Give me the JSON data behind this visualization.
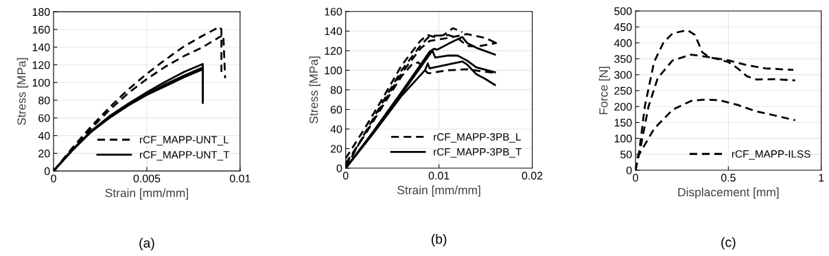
{
  "chart_data": [
    {
      "type": "line",
      "xlabel": "Strain [mm/mm]",
      "ylabel": "Stress [MPa]",
      "xlim": [
        0,
        0.01
      ],
      "xticks": [
        0,
        0.005,
        0.01
      ],
      "ylim": [
        0,
        180
      ],
      "yticks": [
        0,
        20,
        40,
        60,
        80,
        100,
        120,
        140,
        160,
        180
      ],
      "grid": true,
      "legend": "bottom right",
      "marker": "none",
      "annotations": [
        "(a)"
      ],
      "series": [
        {
          "name": "rCF_MAPP-UNT_L",
          "color": "#000000",
          "line_style": "dashed",
          "x": [
            0,
            0.001,
            0.002,
            0.003,
            0.004,
            0.005,
            0.006,
            0.007,
            0.008,
            0.0089,
            0.009,
            0.009
          ],
          "values": [
            0,
            26,
            50,
            72,
            92,
            110,
            126,
            141,
            153,
            163,
            160,
            112
          ]
        },
        {
          "color": "#000000",
          "line_style": "dashed",
          "x": [
            0,
            0.001,
            0.002,
            0.003,
            0.004,
            0.005,
            0.006,
            0.007,
            0.008,
            0.0091,
            0.0092
          ],
          "values": [
            0,
            25,
            48,
            69,
            88,
            104,
            118,
            130,
            140,
            154,
            105
          ]
        },
        {
          "name": "rCF_MAPP-UNT_T",
          "color": "#000000",
          "line_style": "solid",
          "x": [
            0,
            0.001,
            0.002,
            0.003,
            0.004,
            0.005,
            0.006,
            0.007,
            0.008,
            0.008
          ],
          "values": [
            0,
            24,
            45,
            62,
            76,
            89,
            101,
            112,
            121,
            77
          ]
        },
        {
          "color": "#000000",
          "line_style": "solid",
          "x": [
            0,
            0.001,
            0.002,
            0.003,
            0.004,
            0.005,
            0.006,
            0.007,
            0.008,
            0.008
          ],
          "values": [
            0,
            24,
            44,
            61,
            75,
            87,
            98,
            108,
            117,
            80
          ]
        },
        {
          "color": "#000000",
          "line_style": "solid",
          "x": [
            0,
            0.001,
            0.002,
            0.003,
            0.004,
            0.005,
            0.006,
            0.007,
            0.008,
            0.008
          ],
          "values": [
            0,
            23,
            44,
            60,
            74,
            86,
            96,
            106,
            115,
            82
          ]
        }
      ]
    },
    {
      "type": "line",
      "xlabel": "Strain [mm/mm]",
      "ylabel": "Stress [MPa]",
      "xlim": [
        0,
        0.02
      ],
      "xticks": [
        0,
        0.01,
        0.02
      ],
      "ylim": [
        0,
        160
      ],
      "yticks": [
        0,
        20,
        40,
        60,
        80,
        100,
        120,
        140,
        160
      ],
      "grid": true,
      "legend": "bottom right",
      "marker": "none",
      "annotations": [
        "(b)"
      ],
      "series": [
        {
          "name": "rCF_MAPP-3PB_L",
          "color": "#000000",
          "line_style": "dashed",
          "x": [
            0,
            0.002,
            0.004,
            0.006,
            0.008,
            0.0088,
            0.0095,
            0.0105,
            0.0115,
            0.0125
          ],
          "values": [
            10,
            40,
            72,
            105,
            130,
            136,
            134,
            136,
            143,
            139
          ]
        },
        {
          "color": "#000000",
          "line_style": "dashed",
          "x": [
            0,
            0.002,
            0.004,
            0.006,
            0.008,
            0.009,
            0.011,
            0.012,
            0.013,
            0.014,
            0.0162
          ],
          "values": [
            0,
            35,
            68,
            100,
            125,
            135,
            136,
            133,
            125,
            124,
            128
          ]
        },
        {
          "color": "#000000",
          "line_style": "dashed",
          "x": [
            0,
            0.002,
            0.004,
            0.006,
            0.0072,
            0.0078,
            0.0088,
            0.009,
            0.011,
            0.013,
            0.0162
          ],
          "values": [
            5,
            33,
            64,
            94,
            107,
            108,
            97,
            97,
            100,
            101,
            97
          ]
        },
        {
          "color": "#000000",
          "line_style": "dashed",
          "x": [
            0,
            0.002,
            0.004,
            0.006,
            0.008,
            0.009,
            0.011,
            0.013,
            0.015,
            0.0163
          ],
          "values": [
            3,
            34,
            66,
            97,
            122,
            130,
            133,
            137,
            133,
            127
          ]
        },
        {
          "name": "rCF_MAPP-3PB_T",
          "color": "#000000",
          "line_style": "solid",
          "x": [
            0,
            0.003,
            0.006,
            0.009,
            0.0095,
            0.0098,
            0.011,
            0.0125,
            0.013,
            0.014,
            0.016
          ],
          "values": [
            0,
            38,
            78,
            119,
            122,
            121,
            127,
            134,
            128,
            123,
            116
          ]
        },
        {
          "color": "#000000",
          "line_style": "solid",
          "x": [
            0,
            0.003,
            0.006,
            0.009,
            0.0093,
            0.0096,
            0.011,
            0.012,
            0.013,
            0.014,
            0.016
          ],
          "values": [
            0,
            37,
            76,
            116,
            120,
            113,
            115,
            115,
            110,
            103,
            98
          ]
        },
        {
          "color": "#000000",
          "line_style": "solid",
          "x": [
            0,
            0.003,
            0.006,
            0.0085,
            0.0088,
            0.009,
            0.011,
            0.0125,
            0.013,
            0.014,
            0.015,
            0.016
          ],
          "values": [
            0,
            36,
            74,
            100,
            107,
            102,
            106,
            109,
            106,
            96,
            91,
            85
          ]
        }
      ]
    },
    {
      "type": "line",
      "xlabel": "Displacement [mm]",
      "ylabel": "Force [N]",
      "xlim": [
        0,
        1
      ],
      "xticks": [
        0,
        0.5,
        1
      ],
      "ylim": [
        0,
        500
      ],
      "yticks": [
        0,
        50,
        100,
        150,
        200,
        250,
        300,
        350,
        400,
        450,
        500
      ],
      "grid": true,
      "legend": "bottom right",
      "marker": "none",
      "annotations": [
        "(c)"
      ],
      "series": [
        {
          "name": "rCF_MAPP-ILSS",
          "color": "#000000",
          "line_style": "dashed",
          "x": [
            0,
            0.02,
            0.05,
            0.1,
            0.15,
            0.2,
            0.28,
            0.32,
            0.36,
            0.4,
            0.5,
            0.55,
            0.6,
            0.65,
            0.75,
            0.86
          ],
          "values": [
            0,
            60,
            200,
            340,
            400,
            430,
            440,
            425,
            370,
            355,
            340,
            320,
            295,
            285,
            286,
            282
          ]
        },
        {
          "color": "#000000",
          "line_style": "dashed",
          "x": [
            0,
            0.03,
            0.07,
            0.12,
            0.2,
            0.3,
            0.4,
            0.5,
            0.6,
            0.7,
            0.85
          ],
          "values": [
            0,
            80,
            200,
            290,
            345,
            363,
            355,
            345,
            330,
            320,
            315
          ]
        },
        {
          "color": "#000000",
          "line_style": "dashed",
          "x": [
            0,
            0.01,
            0.03,
            0.1,
            0.2,
            0.3,
            0.38,
            0.45,
            0.55,
            0.65,
            0.75,
            0.86
          ],
          "values": [
            0,
            40,
            60,
            130,
            190,
            218,
            222,
            220,
            205,
            185,
            172,
            157
          ]
        }
      ]
    }
  ]
}
